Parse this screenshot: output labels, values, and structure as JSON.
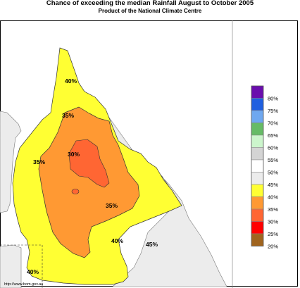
{
  "header": {
    "title": "Chance of exceeding the median Rainfall August to October 2005",
    "subtitle": "Product of the National Climate Centre"
  },
  "map": {
    "region_labels": [
      {
        "id": "n40",
        "text": "40%"
      },
      {
        "id": "n35",
        "text": "35%"
      },
      {
        "id": "c30",
        "text": "30%"
      },
      {
        "id": "w35",
        "text": "35%"
      },
      {
        "id": "s35",
        "text": "35%"
      },
      {
        "id": "s40",
        "text": "40%"
      },
      {
        "id": "e45",
        "text": "45%"
      },
      {
        "id": "sw40",
        "text": "40%"
      }
    ],
    "credit": "http://www.bom.gov.au"
  },
  "legend": {
    "items": [
      {
        "label": "80%",
        "color": "#6a0dad"
      },
      {
        "label": "75%",
        "color": "#1f5fe0"
      },
      {
        "label": "70%",
        "color": "#6fa8f0"
      },
      {
        "label": "65%",
        "color": "#66bb66"
      },
      {
        "label": "60%",
        "color": "#ccf5cc"
      },
      {
        "label": "55%",
        "color": "#d4d4d4"
      },
      {
        "label": "50%",
        "color": "#ffffff"
      },
      {
        "label": "45%",
        "color": "#ececec"
      },
      {
        "label": "40%",
        "color": "#ffff33"
      },
      {
        "label": "35%",
        "color": "#ff9933"
      },
      {
        "label": "30%",
        "color": "#ff6633"
      },
      {
        "label": "25%",
        "color": "#ff0000"
      },
      {
        "label": "20%",
        "color": "#a0641e"
      }
    ]
  },
  "colors": {
    "land_outside": "#ececec",
    "zone_40": "#ffff33",
    "zone_35": "#ff9933",
    "zone_30": "#ff6633"
  }
}
